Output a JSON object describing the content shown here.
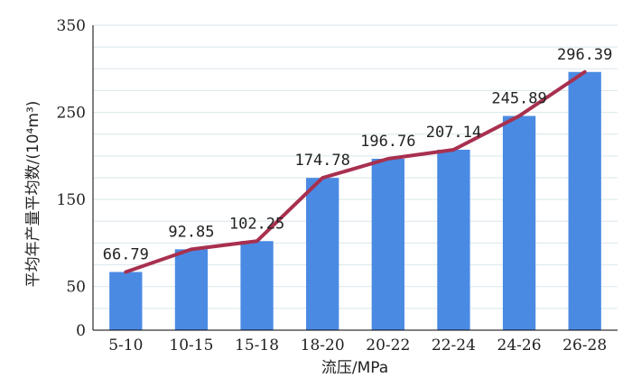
{
  "chart_data": {
    "type": "bar",
    "xlabel": "流压/MPa",
    "ylabel": "平均年产量平均数/(10⁴m³)",
    "categories": [
      "5-10",
      "10-15",
      "15-18",
      "18-20",
      "20-22",
      "22-24",
      "24-26",
      "26-28"
    ],
    "values": [
      66.79,
      92.85,
      102.25,
      174.78,
      196.76,
      207.14,
      245.89,
      296.39
    ],
    "value_labels": [
      "66.79",
      "92.85",
      "102.25",
      "174.78",
      "196.76",
      "207.14",
      "245.89",
      "296.39"
    ],
    "yticks": [
      0,
      50,
      150,
      250,
      350
    ],
    "ylim": [
      0,
      350
    ],
    "grid": true,
    "overlay": "line",
    "colors": {
      "bar": "#4a8ae3",
      "line": "#a8304f",
      "grid": "#d9e6ea"
    }
  }
}
